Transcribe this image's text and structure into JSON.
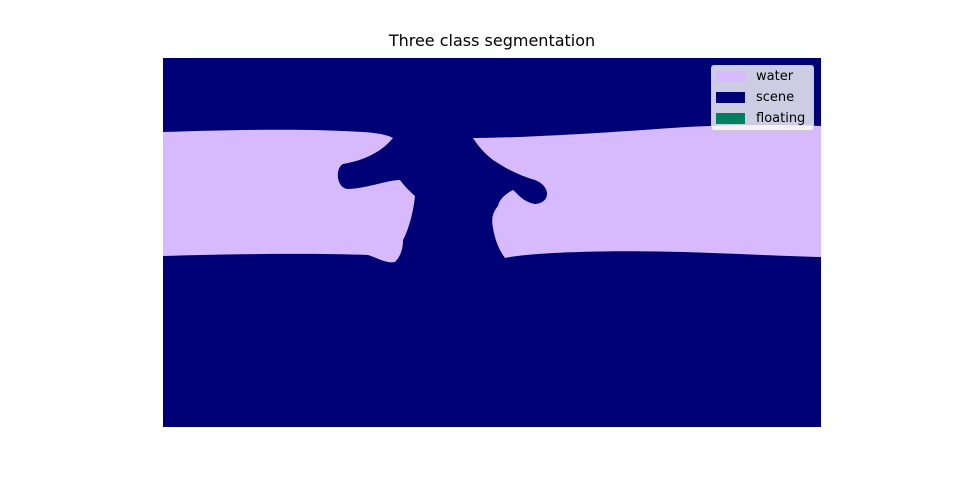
{
  "figure": {
    "title": "Three class segmentation"
  },
  "classes": [
    {
      "name": "water",
      "color": "#d7b9fd"
    },
    {
      "name": "scene",
      "color": "#000076"
    },
    {
      "name": "floating",
      "color": "#008060"
    }
  ]
}
